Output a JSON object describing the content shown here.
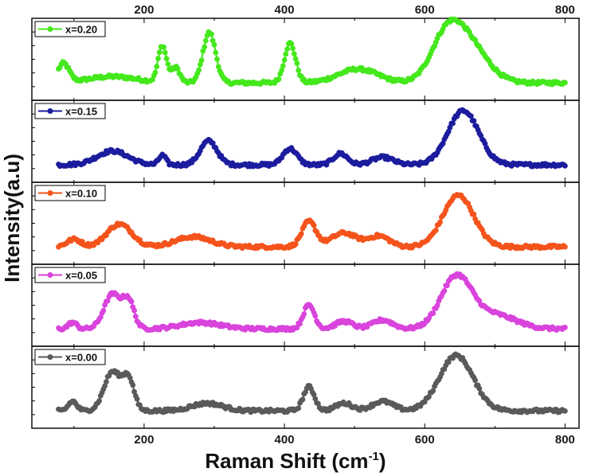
{
  "chart_data": {
    "type": "line",
    "xlabel": "Raman Shift (cm",
    "xlabel_sup": "-1",
    "xlabel_end": ")",
    "ylabel": "Intensity(a.u)",
    "xlim": [
      40,
      820
    ],
    "ylim": [
      0,
      1
    ],
    "x_ticks": [
      200,
      400,
      600,
      800
    ],
    "x_tick_labels": [
      "200",
      "400",
      "600",
      "800"
    ],
    "grid": false,
    "legend_position": "top-left of each panel",
    "panels": [
      {
        "name": "x=0.20",
        "color": "#44e81c",
        "peaks": [
          {
            "x": 85,
            "h": 0.3,
            "w": 8
          },
          {
            "x": 155,
            "h": 0.1,
            "w": 35
          },
          {
            "x": 226,
            "h": 0.58,
            "w": 6
          },
          {
            "x": 245,
            "h": 0.24,
            "w": 6
          },
          {
            "x": 293,
            "h": 0.8,
            "w": 9
          },
          {
            "x": 408,
            "h": 0.63,
            "w": 8
          },
          {
            "x": 505,
            "h": 0.22,
            "w": 28
          },
          {
            "x": 630,
            "h": 0.58,
            "w": 22
          },
          {
            "x": 660,
            "h": 0.62,
            "w": 28
          }
        ]
      },
      {
        "name": "x=0.15",
        "color": "#1c1c9e",
        "peaks": [
          {
            "x": 155,
            "h": 0.22,
            "w": 22
          },
          {
            "x": 226,
            "h": 0.15,
            "w": 5
          },
          {
            "x": 292,
            "h": 0.38,
            "w": 12
          },
          {
            "x": 408,
            "h": 0.26,
            "w": 10
          },
          {
            "x": 480,
            "h": 0.18,
            "w": 10
          },
          {
            "x": 540,
            "h": 0.12,
            "w": 15
          },
          {
            "x": 655,
            "h": 0.86,
            "w": 22
          }
        ]
      },
      {
        "name": "x=0.10",
        "color": "#f4541c",
        "peaks": [
          {
            "x": 100,
            "h": 0.12,
            "w": 10
          },
          {
            "x": 165,
            "h": 0.36,
            "w": 18
          },
          {
            "x": 270,
            "h": 0.16,
            "w": 25
          },
          {
            "x": 435,
            "h": 0.4,
            "w": 10
          },
          {
            "x": 485,
            "h": 0.22,
            "w": 18
          },
          {
            "x": 535,
            "h": 0.17,
            "w": 15
          },
          {
            "x": 648,
            "h": 0.82,
            "w": 22
          }
        ]
      },
      {
        "name": "x=0.05",
        "color": "#d944dc",
        "peaks": [
          {
            "x": 98,
            "h": 0.1,
            "w": 6
          },
          {
            "x": 155,
            "h": 0.55,
            "w": 12
          },
          {
            "x": 178,
            "h": 0.42,
            "w": 8
          },
          {
            "x": 280,
            "h": 0.1,
            "w": 28
          },
          {
            "x": 435,
            "h": 0.38,
            "w": 8
          },
          {
            "x": 485,
            "h": 0.12,
            "w": 12
          },
          {
            "x": 540,
            "h": 0.14,
            "w": 14
          },
          {
            "x": 645,
            "h": 0.82,
            "w": 22
          },
          {
            "x": 700,
            "h": 0.22,
            "w": 30
          }
        ]
      },
      {
        "name": "x=0.00",
        "color": "#5a5a5a",
        "peaks": [
          {
            "x": 98,
            "h": 0.15,
            "w": 6
          },
          {
            "x": 155,
            "h": 0.62,
            "w": 12
          },
          {
            "x": 178,
            "h": 0.48,
            "w": 8
          },
          {
            "x": 290,
            "h": 0.12,
            "w": 22
          },
          {
            "x": 435,
            "h": 0.38,
            "w": 8
          },
          {
            "x": 485,
            "h": 0.12,
            "w": 12
          },
          {
            "x": 540,
            "h": 0.15,
            "w": 15
          },
          {
            "x": 645,
            "h": 0.88,
            "w": 24
          }
        ]
      }
    ]
  }
}
